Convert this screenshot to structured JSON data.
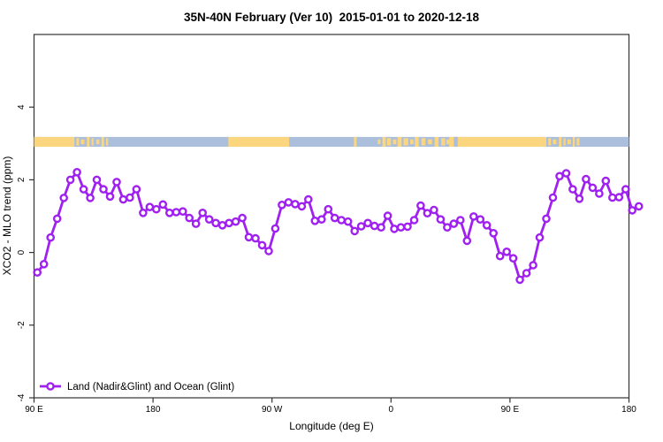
{
  "title": "35N-40N February (Ver 10)  2015-01-01 to 2020-12-18",
  "chart_data": {
    "type": "line",
    "title": "35N-40N February (Ver 10)  2015-01-01 to 2020-12-18",
    "xlabel": "Longitude (deg E)",
    "ylabel": "XCO2 - MLO trend (ppm)",
    "x_axis": {
      "min": 90,
      "max": 540,
      "note": "cumulative longitude travelling east from 90E; 270=90W, 360=0, 450=90E, 540=180",
      "ticks": [
        {
          "value": 90,
          "label": "90 E"
        },
        {
          "value": 180,
          "label": "180"
        },
        {
          "value": 270,
          "label": "90 W"
        },
        {
          "value": 360,
          "label": "0"
        },
        {
          "value": 450,
          "label": "90 E"
        },
        {
          "value": 540,
          "label": "180"
        }
      ]
    },
    "y_axis": {
      "min": -4,
      "max": 6,
      "ticks": [
        -4,
        -2,
        0,
        2,
        4
      ]
    },
    "grid": false,
    "legend": {
      "label": "Land (Nadir&Glint) and Ocean (Glint)",
      "position": "bottom-left"
    },
    "series": [
      {
        "name": "Land (Nadir&Glint) and Ocean (Glint)",
        "color": "#A020F0",
        "marker": "open-circle",
        "x_start": 92.5,
        "x_step": 5,
        "values": [
          -0.55,
          -0.32,
          0.41,
          0.93,
          1.5,
          2.0,
          2.21,
          1.74,
          1.5,
          2.0,
          1.74,
          1.54,
          1.94,
          1.46,
          1.51,
          1.74,
          1.09,
          1.25,
          1.19,
          1.32,
          1.09,
          1.11,
          1.13,
          0.95,
          0.79,
          1.09,
          0.91,
          0.81,
          0.75,
          0.81,
          0.85,
          0.95,
          0.42,
          0.39,
          0.2,
          0.04,
          0.66,
          1.31,
          1.38,
          1.33,
          1.27,
          1.46,
          0.87,
          0.91,
          1.19,
          0.95,
          0.89,
          0.85,
          0.59,
          0.72,
          0.81,
          0.73,
          0.69,
          1.01,
          0.65,
          0.69,
          0.71,
          0.89,
          1.29,
          1.08,
          1.17,
          0.91,
          0.69,
          0.79,
          0.89,
          0.32,
          0.99,
          0.91,
          0.75,
          0.53,
          -0.1,
          0.02,
          -0.16,
          -0.75,
          -0.57,
          -0.35,
          0.41,
          0.93,
          1.51,
          2.1,
          2.18,
          1.74,
          1.48,
          2.02,
          1.78,
          1.62,
          1.97,
          1.51,
          1.52,
          1.74,
          1.16,
          1.27
        ]
      }
    ],
    "surface_band": {
      "description": "land/ocean strip drawn near y=3",
      "y_top_value": 3.18,
      "y_bottom_value": 2.91,
      "colors": {
        "land": "#FCD67E",
        "ocean": "#ABBEDC"
      },
      "extent": [
        90,
        540
      ],
      "land_segments": [
        [
          90,
          118
        ],
        [
          237,
          283
        ],
        [
          332,
          334
        ],
        [
          404,
          475
        ]
      ],
      "ocean_patches": [
        [
          407.5,
          410.5
        ]
      ],
      "coast_land_patches": [
        [
          118,
          120.5
        ],
        [
          122,
          124
        ],
        [
          125.5,
          128
        ],
        [
          130,
          132
        ],
        [
          133.5,
          135
        ],
        [
          137,
          139.5
        ],
        [
          141,
          143
        ],
        [
          144.5,
          146
        ],
        [
          350,
          352
        ],
        [
          353.5,
          356
        ],
        [
          357,
          360
        ],
        [
          361.5,
          364
        ],
        [
          365,
          368
        ],
        [
          369.5,
          373
        ],
        [
          374.5,
          377
        ],
        [
          378,
          381
        ],
        [
          383,
          386
        ],
        [
          388,
          391
        ],
        [
          393,
          396
        ],
        [
          398,
          401
        ],
        [
          402,
          404
        ],
        [
          475,
          477.5
        ],
        [
          479,
          481
        ],
        [
          482.5,
          485
        ],
        [
          487,
          489
        ],
        [
          490.5,
          492
        ],
        [
          493.5,
          496
        ],
        [
          497.5,
          499
        ],
        [
          500.5,
          502.5
        ]
      ]
    },
    "frame_color": "#333333"
  }
}
